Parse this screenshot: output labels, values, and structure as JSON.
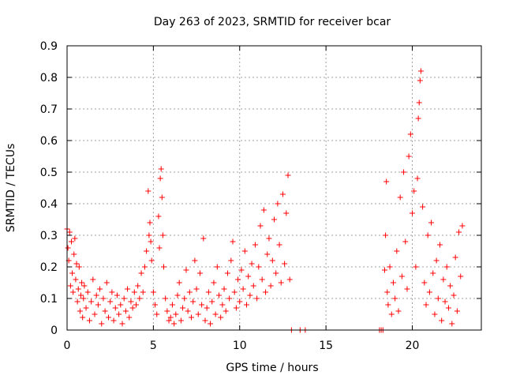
{
  "chart_data": {
    "type": "scatter",
    "title": "Day 263 of 2023, SRMTID for receiver bcar",
    "xlabel": "GPS time / hours",
    "ylabel": "SRMTID / TECUs",
    "xlim": [
      0,
      24
    ],
    "ylim": [
      0,
      0.9
    ],
    "xticks": [
      0,
      5,
      10,
      15,
      20
    ],
    "yticks": [
      0,
      0.1,
      0.2,
      0.3,
      0.4,
      0.5,
      0.6,
      0.7,
      0.8,
      0.9
    ],
    "xtick_labels": [
      "0",
      "5",
      "10",
      "15",
      "20"
    ],
    "ytick_labels": [
      "0",
      "0.1",
      "0.2",
      "0.3",
      "0.4",
      "0.5",
      "0.6",
      "0.7",
      "0.8",
      "0.9"
    ],
    "grid": true,
    "marker": "+",
    "color": "#ff0000",
    "series": [
      {
        "name": "SRMTID",
        "points": [
          [
            0.0,
            0.32
          ],
          [
            0.05,
            0.26
          ],
          [
            0.1,
            0.22
          ],
          [
            0.15,
            0.31
          ],
          [
            0.2,
            0.14
          ],
          [
            0.25,
            0.28
          ],
          [
            0.3,
            0.18
          ],
          [
            0.35,
            0.12
          ],
          [
            0.4,
            0.24
          ],
          [
            0.45,
            0.29
          ],
          [
            0.5,
            0.16
          ],
          [
            0.55,
            0.21
          ],
          [
            0.6,
            0.09
          ],
          [
            0.65,
            0.13
          ],
          [
            0.7,
            0.2
          ],
          [
            0.75,
            0.06
          ],
          [
            0.8,
            0.11
          ],
          [
            0.85,
            0.15
          ],
          [
            0.9,
            0.04
          ],
          [
            0.95,
            0.1
          ],
          [
            1.0,
            0.14
          ],
          [
            1.1,
            0.07
          ],
          [
            1.2,
            0.12
          ],
          [
            1.3,
            0.03
          ],
          [
            1.4,
            0.09
          ],
          [
            1.5,
            0.16
          ],
          [
            1.6,
            0.05
          ],
          [
            1.7,
            0.11
          ],
          [
            1.8,
            0.08
          ],
          [
            1.9,
            0.13
          ],
          [
            2.0,
            0.02
          ],
          [
            2.1,
            0.1
          ],
          [
            2.2,
            0.06
          ],
          [
            2.3,
            0.15
          ],
          [
            2.4,
            0.04
          ],
          [
            2.5,
            0.09
          ],
          [
            2.6,
            0.12
          ],
          [
            2.7,
            0.03
          ],
          [
            2.8,
            0.07
          ],
          [
            2.9,
            0.11
          ],
          [
            3.0,
            0.05
          ],
          [
            3.1,
            0.08
          ],
          [
            3.2,
            0.02
          ],
          [
            3.3,
            0.1
          ],
          [
            3.4,
            0.06
          ],
          [
            3.5,
            0.13
          ],
          [
            3.6,
            0.04
          ],
          [
            3.7,
            0.09
          ],
          [
            3.8,
            0.07
          ],
          [
            3.9,
            0.12
          ],
          [
            4.0,
            0.08
          ],
          [
            4.1,
            0.14
          ],
          [
            4.2,
            0.1
          ],
          [
            4.3,
            0.18
          ],
          [
            4.4,
            0.12
          ],
          [
            4.5,
            0.2
          ],
          [
            4.6,
            0.25
          ],
          [
            4.7,
            0.44
          ],
          [
            4.75,
            0.3
          ],
          [
            4.8,
            0.34
          ],
          [
            4.85,
            0.28
          ],
          [
            4.9,
            0.22
          ],
          [
            5.0,
            0.12
          ],
          [
            5.1,
            0.08
          ],
          [
            5.2,
            0.05
          ],
          [
            5.3,
            0.36
          ],
          [
            5.35,
            0.26
          ],
          [
            5.4,
            0.48
          ],
          [
            5.45,
            0.51
          ],
          [
            5.5,
            0.42
          ],
          [
            5.55,
            0.3
          ],
          [
            5.6,
            0.2
          ],
          [
            5.7,
            0.1
          ],
          [
            5.8,
            0.06
          ],
          [
            5.9,
            0.03
          ],
          [
            6.0,
            0.04
          ],
          [
            6.1,
            0.08
          ],
          [
            6.2,
            0.02
          ],
          [
            6.3,
            0.05
          ],
          [
            6.4,
            0.11
          ],
          [
            6.5,
            0.15
          ],
          [
            6.6,
            0.03
          ],
          [
            6.7,
            0.07
          ],
          [
            6.8,
            0.1
          ],
          [
            6.9,
            0.19
          ],
          [
            7.0,
            0.06
          ],
          [
            7.1,
            0.12
          ],
          [
            7.2,
            0.04
          ],
          [
            7.3,
            0.09
          ],
          [
            7.4,
            0.22
          ],
          [
            7.5,
            0.13
          ],
          [
            7.6,
            0.05
          ],
          [
            7.7,
            0.18
          ],
          [
            7.8,
            0.08
          ],
          [
            7.9,
            0.29
          ],
          [
            8.0,
            0.03
          ],
          [
            8.1,
            0.07
          ],
          [
            8.2,
            0.12
          ],
          [
            8.3,
            0.02
          ],
          [
            8.4,
            0.09
          ],
          [
            8.5,
            0.15
          ],
          [
            8.6,
            0.05
          ],
          [
            8.7,
            0.2
          ],
          [
            8.8,
            0.11
          ],
          [
            8.9,
            0.04
          ],
          [
            9.0,
            0.08
          ],
          [
            9.1,
            0.13
          ],
          [
            9.2,
            0.06
          ],
          [
            9.3,
            0.18
          ],
          [
            9.4,
            0.1
          ],
          [
            9.5,
            0.22
          ],
          [
            9.6,
            0.28
          ],
          [
            9.7,
            0.12
          ],
          [
            9.8,
            0.07
          ],
          [
            9.9,
            0.16
          ],
          [
            10.0,
            0.09
          ],
          [
            10.1,
            0.19
          ],
          [
            10.2,
            0.13
          ],
          [
            10.3,
            0.25
          ],
          [
            10.4,
            0.08
          ],
          [
            10.5,
            0.17
          ],
          [
            10.6,
            0.11
          ],
          [
            10.7,
            0.21
          ],
          [
            10.8,
            0.14
          ],
          [
            10.9,
            0.27
          ],
          [
            11.0,
            0.1
          ],
          [
            11.1,
            0.2
          ],
          [
            11.2,
            0.33
          ],
          [
            11.3,
            0.16
          ],
          [
            11.4,
            0.38
          ],
          [
            11.5,
            0.12
          ],
          [
            11.6,
            0.24
          ],
          [
            11.7,
            0.29
          ],
          [
            11.8,
            0.14
          ],
          [
            11.9,
            0.22
          ],
          [
            12.0,
            0.35
          ],
          [
            12.1,
            0.18
          ],
          [
            12.2,
            0.4
          ],
          [
            12.3,
            0.27
          ],
          [
            12.4,
            0.15
          ],
          [
            12.5,
            0.43
          ],
          [
            12.6,
            0.21
          ],
          [
            12.7,
            0.37
          ],
          [
            12.8,
            0.49
          ],
          [
            12.9,
            0.16
          ],
          [
            13.0,
            0.0
          ],
          [
            13.5,
            0.0
          ],
          [
            13.8,
            0.0
          ],
          [
            18.1,
            0.0
          ],
          [
            18.2,
            0.0
          ],
          [
            18.3,
            0.0
          ],
          [
            18.4,
            0.19
          ],
          [
            18.45,
            0.3
          ],
          [
            18.5,
            0.47
          ],
          [
            18.55,
            0.12
          ],
          [
            18.6,
            0.08
          ],
          [
            18.7,
            0.2
          ],
          [
            18.8,
            0.05
          ],
          [
            18.9,
            0.15
          ],
          [
            19.0,
            0.1
          ],
          [
            19.1,
            0.25
          ],
          [
            19.2,
            0.06
          ],
          [
            19.3,
            0.42
          ],
          [
            19.4,
            0.17
          ],
          [
            19.5,
            0.5
          ],
          [
            19.6,
            0.28
          ],
          [
            19.7,
            0.13
          ],
          [
            19.8,
            0.55
          ],
          [
            19.9,
            0.62
          ],
          [
            20.0,
            0.37
          ],
          [
            20.1,
            0.44
          ],
          [
            20.2,
            0.2
          ],
          [
            20.3,
            0.48
          ],
          [
            20.35,
            0.67
          ],
          [
            20.4,
            0.72
          ],
          [
            20.45,
            0.79
          ],
          [
            20.5,
            0.82
          ],
          [
            20.6,
            0.39
          ],
          [
            20.7,
            0.15
          ],
          [
            20.8,
            0.08
          ],
          [
            20.9,
            0.3
          ],
          [
            21.0,
            0.12
          ],
          [
            21.1,
            0.34
          ],
          [
            21.2,
            0.18
          ],
          [
            21.3,
            0.05
          ],
          [
            21.4,
            0.22
          ],
          [
            21.5,
            0.1
          ],
          [
            21.6,
            0.27
          ],
          [
            21.7,
            0.03
          ],
          [
            21.8,
            0.16
          ],
          [
            21.9,
            0.09
          ],
          [
            22.0,
            0.2
          ],
          [
            22.1,
            0.07
          ],
          [
            22.2,
            0.14
          ],
          [
            22.3,
            0.02
          ],
          [
            22.4,
            0.11
          ],
          [
            22.5,
            0.23
          ],
          [
            22.6,
            0.06
          ],
          [
            22.7,
            0.31
          ],
          [
            22.8,
            0.17
          ],
          [
            22.9,
            0.33
          ]
        ]
      }
    ]
  }
}
